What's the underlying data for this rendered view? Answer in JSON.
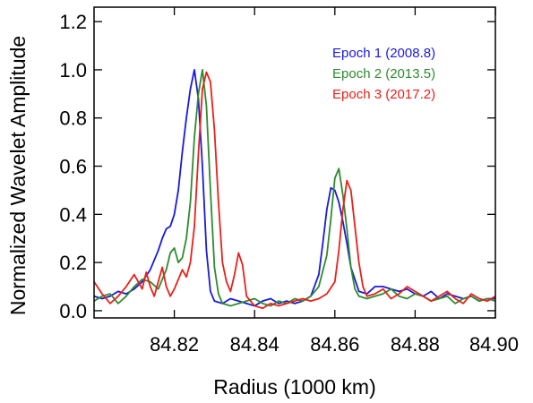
{
  "chart_data": {
    "type": "line",
    "title": "",
    "xlabel": "Radius (1000 km)",
    "ylabel": "Normalized Wavelet Amplitude",
    "xlim": [
      84.8,
      84.9
    ],
    "ylim": [
      -0.03,
      1.26
    ],
    "x_ticks": [
      {
        "value": 84.82,
        "label": "84.82"
      },
      {
        "value": 84.84,
        "label": "84.84"
      },
      {
        "value": 84.86,
        "label": "84.86"
      },
      {
        "value": 84.88,
        "label": "84.88"
      },
      {
        "value": 84.9,
        "label": "84.90"
      }
    ],
    "y_ticks": [
      {
        "value": 0.0,
        "label": "0.0"
      },
      {
        "value": 0.2,
        "label": "0.2"
      },
      {
        "value": 0.4,
        "label": "0.4"
      },
      {
        "value": 0.6,
        "label": "0.6"
      },
      {
        "value": 0.8,
        "label": "0.8"
      },
      {
        "value": 1.0,
        "label": "1.0"
      },
      {
        "value": 1.2,
        "label": "1.2"
      }
    ],
    "grid": false,
    "legend": {
      "placement": "top-right"
    },
    "series": [
      {
        "name": "Epoch 1 (2008.8)",
        "color": "#1a1adc",
        "x": [
          84.8,
          84.802,
          84.804,
          84.806,
          84.808,
          84.81,
          84.812,
          84.814,
          84.816,
          84.817,
          84.818,
          84.819,
          84.82,
          84.821,
          84.822,
          84.823,
          84.824,
          84.825,
          84.826,
          84.827,
          84.828,
          84.829,
          84.83,
          84.832,
          84.834,
          84.836,
          84.838,
          84.84,
          84.842,
          84.844,
          84.846,
          84.848,
          84.85,
          84.852,
          84.854,
          84.856,
          84.857,
          84.858,
          84.859,
          84.86,
          84.861,
          84.862,
          84.863,
          84.864,
          84.866,
          84.868,
          84.87,
          84.872,
          84.874,
          84.876,
          84.878,
          84.88,
          84.882,
          84.884,
          84.886,
          84.888,
          84.89,
          84.892,
          84.894,
          84.896,
          84.898,
          84.9
        ],
        "y": [
          0.06,
          0.05,
          0.06,
          0.08,
          0.07,
          0.09,
          0.12,
          0.17,
          0.25,
          0.3,
          0.34,
          0.35,
          0.4,
          0.5,
          0.66,
          0.8,
          0.92,
          1.0,
          0.88,
          0.6,
          0.25,
          0.08,
          0.04,
          0.03,
          0.05,
          0.04,
          0.03,
          0.02,
          0.04,
          0.05,
          0.03,
          0.04,
          0.03,
          0.04,
          0.06,
          0.15,
          0.28,
          0.42,
          0.51,
          0.5,
          0.45,
          0.37,
          0.28,
          0.18,
          0.08,
          0.07,
          0.1,
          0.1,
          0.09,
          0.08,
          0.09,
          0.07,
          0.06,
          0.08,
          0.05,
          0.07,
          0.06,
          0.05,
          0.06,
          0.04,
          0.05,
          0.05
        ]
      },
      {
        "name": "Epoch 2 (2013.5)",
        "color": "#2e8b2e",
        "x": [
          84.8,
          84.802,
          84.804,
          84.806,
          84.808,
          84.81,
          84.812,
          84.814,
          84.816,
          84.818,
          84.819,
          84.82,
          84.821,
          84.822,
          84.823,
          84.824,
          84.825,
          84.826,
          84.827,
          84.828,
          84.829,
          84.83,
          84.831,
          84.832,
          84.834,
          84.836,
          84.838,
          84.84,
          84.842,
          84.844,
          84.846,
          84.848,
          84.85,
          84.852,
          84.854,
          84.856,
          84.858,
          84.859,
          84.86,
          84.861,
          84.862,
          84.863,
          84.864,
          84.865,
          84.866,
          84.868,
          84.87,
          84.872,
          84.874,
          84.876,
          84.878,
          84.88,
          84.882,
          84.884,
          84.886,
          84.888,
          84.89,
          84.892,
          84.894,
          84.896,
          84.898,
          84.9
        ],
        "y": [
          0.04,
          0.06,
          0.07,
          0.03,
          0.06,
          0.1,
          0.13,
          0.12,
          0.09,
          0.17,
          0.24,
          0.26,
          0.2,
          0.22,
          0.3,
          0.45,
          0.72,
          0.9,
          1.0,
          0.85,
          0.5,
          0.18,
          0.07,
          0.03,
          0.02,
          0.03,
          0.04,
          0.05,
          0.03,
          0.02,
          0.04,
          0.03,
          0.05,
          0.04,
          0.06,
          0.1,
          0.23,
          0.38,
          0.55,
          0.59,
          0.48,
          0.34,
          0.18,
          0.09,
          0.06,
          0.05,
          0.06,
          0.07,
          0.09,
          0.06,
          0.05,
          0.07,
          0.06,
          0.04,
          0.05,
          0.06,
          0.03,
          0.05,
          0.06,
          0.04,
          0.05,
          0.04
        ]
      },
      {
        "name": "Epoch 3 (2017.2)",
        "color": "#e8211b",
        "x": [
          84.8,
          84.802,
          84.804,
          84.806,
          84.808,
          84.81,
          84.812,
          84.813,
          84.814,
          84.815,
          84.816,
          84.817,
          84.818,
          84.819,
          84.82,
          84.821,
          84.822,
          84.823,
          84.824,
          84.825,
          84.826,
          84.827,
          84.828,
          84.829,
          84.83,
          84.831,
          84.832,
          84.833,
          84.834,
          84.835,
          84.836,
          84.837,
          84.838,
          84.84,
          84.842,
          84.844,
          84.846,
          84.848,
          84.85,
          84.852,
          84.854,
          84.856,
          84.858,
          84.86,
          84.861,
          84.862,
          84.863,
          84.864,
          84.865,
          84.866,
          84.867,
          84.868,
          84.87,
          84.872,
          84.874,
          84.876,
          84.878,
          84.88,
          84.882,
          84.884,
          84.886,
          84.888,
          84.89,
          84.892,
          84.894,
          84.896,
          84.898,
          84.9
        ],
        "y": [
          0.12,
          0.07,
          0.03,
          0.06,
          0.1,
          0.15,
          0.09,
          0.16,
          0.1,
          0.06,
          0.12,
          0.18,
          0.1,
          0.06,
          0.09,
          0.13,
          0.17,
          0.14,
          0.2,
          0.35,
          0.65,
          0.92,
          0.99,
          0.95,
          0.75,
          0.45,
          0.2,
          0.12,
          0.08,
          0.15,
          0.24,
          0.19,
          0.06,
          0.02,
          0.01,
          0.03,
          0.02,
          0.03,
          0.04,
          0.05,
          0.04,
          0.05,
          0.07,
          0.12,
          0.25,
          0.42,
          0.54,
          0.5,
          0.35,
          0.2,
          0.1,
          0.06,
          0.07,
          0.09,
          0.05,
          0.07,
          0.1,
          0.08,
          0.06,
          0.04,
          0.06,
          0.08,
          0.05,
          0.03,
          0.07,
          0.05,
          0.04,
          0.06
        ]
      }
    ]
  }
}
